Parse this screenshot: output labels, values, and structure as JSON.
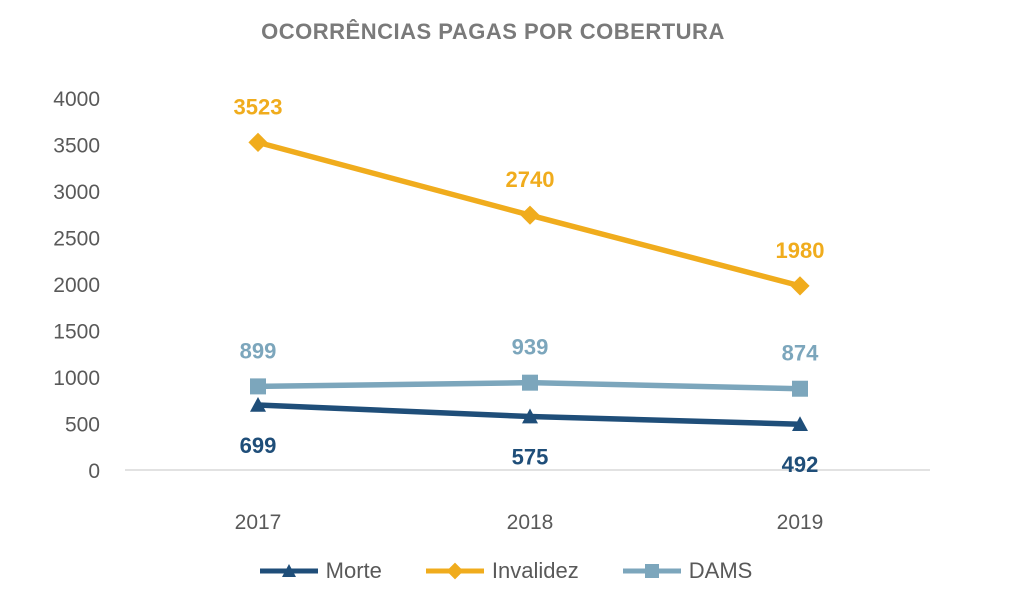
{
  "title": "OCORRÊNCIAS PAGAS POR COBERTURA",
  "chart_data": {
    "type": "line",
    "categories": [
      "2017",
      "2018",
      "2019"
    ],
    "series": [
      {
        "name": "Morte",
        "values": [
          699,
          575,
          492
        ],
        "color": "#1F4E79",
        "marker": "triangle",
        "label_position": "below"
      },
      {
        "name": "Invalidez",
        "values": [
          3523,
          2740,
          1980
        ],
        "color": "#F0AC1D",
        "marker": "diamond",
        "label_position": "above"
      },
      {
        "name": "DAMS",
        "values": [
          899,
          939,
          874
        ],
        "color": "#7CA6BC",
        "marker": "square",
        "label_position": "above"
      }
    ],
    "ylim": [
      0,
      4000
    ],
    "ytick_step": 500,
    "yticks": [
      0,
      500,
      1000,
      1500,
      2000,
      2500,
      3000,
      3500,
      4000
    ],
    "grid": false,
    "data_labels": true,
    "legend_position": "bottom",
    "xlabel": "",
    "ylabel": ""
  },
  "colors": {
    "title_text": "#7A7A7A",
    "tick_label": "#595959",
    "legend_text": "#595959",
    "axis_line": "#D9D9D9",
    "background": "#FFFFFF",
    "series_morte": "#1F4E79",
    "series_invalidez": "#F0AC1D",
    "series_dams": "#7CA6BC"
  }
}
